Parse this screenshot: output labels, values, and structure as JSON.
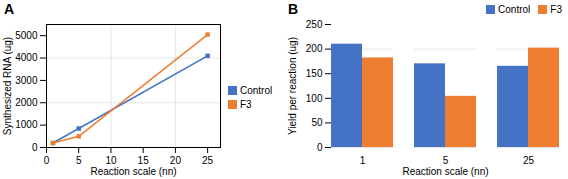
{
  "chart_data": [
    {
      "type": "line",
      "title": "A",
      "x": [
        1,
        5,
        25
      ],
      "series": [
        {
          "name": "Control",
          "color": "#4472C4",
          "values": [
            200,
            850,
            4100
          ]
        },
        {
          "name": "F3",
          "color": "#ED7D31",
          "values": [
            200,
            500,
            5050
          ]
        }
      ],
      "xlabel": "Reaction scale (nn)",
      "ylabel": "Synthesized RNA (ug)",
      "xlim": [
        0,
        27
      ],
      "ylim": [
        0,
        5500
      ],
      "xticks": [
        0,
        5,
        10,
        15,
        20,
        25
      ],
      "yticks": [
        0,
        1000,
        2000,
        3000,
        4000,
        5000
      ],
      "marker": "square",
      "grid": true,
      "legend": "right"
    },
    {
      "type": "bar",
      "title": "B",
      "categories": [
        "1",
        "5",
        "25"
      ],
      "series": [
        {
          "name": "Control",
          "color": "#4472C4",
          "values": [
            210,
            170,
            165
          ]
        },
        {
          "name": "F3",
          "color": "#ED7D31",
          "values": [
            182,
            104,
            202
          ]
        }
      ],
      "xlabel": "Reaction scale (nn)",
      "ylabel": "Yield per reaction (ug)",
      "ylim": [
        0,
        250
      ],
      "yticks": [
        0,
        50,
        100,
        150,
        200,
        250
      ],
      "grid": "y",
      "legend": "upper right"
    }
  ]
}
